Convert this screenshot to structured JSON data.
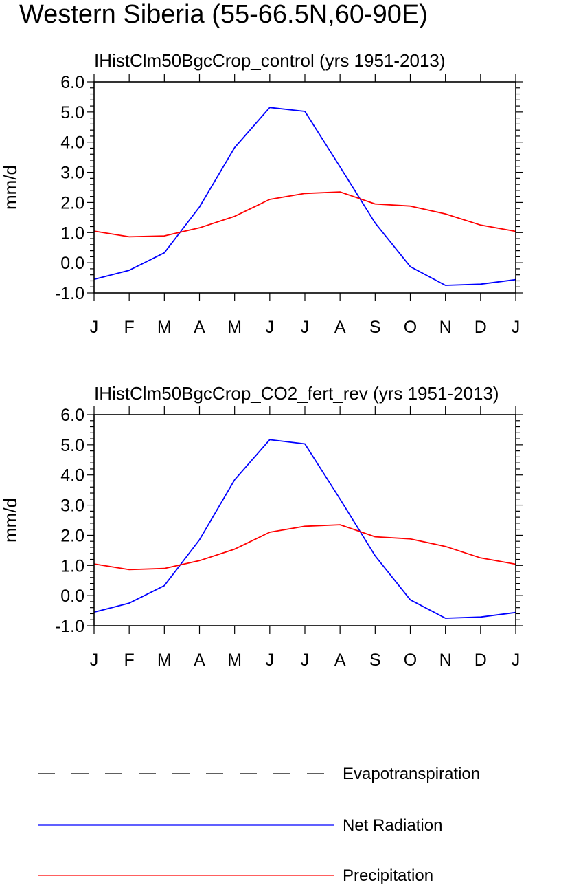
{
  "title": "Western Siberia (55-66.5N,60-90E)",
  "colors": {
    "net_radiation": "#0000ff",
    "precipitation": "#ff0000",
    "evapotranspiration": "#000000"
  },
  "chart_data": [
    {
      "type": "line",
      "title": "IHistClm50BgcCrop_control (yrs 1951-2013)",
      "ylabel": "mm/d",
      "xlabel": "",
      "categories": [
        "J",
        "F",
        "M",
        "A",
        "M",
        "J",
        "J",
        "A",
        "S",
        "O",
        "N",
        "D",
        "J"
      ],
      "ylim": [
        -1.0,
        6.0
      ],
      "yticks": [
        "6.0",
        "5.0",
        "4.0",
        "3.0",
        "2.0",
        "1.0",
        "0.0",
        "-1.0"
      ],
      "grid": false,
      "series": [
        {
          "name": "Net Radiation",
          "values": [
            -0.55,
            -0.25,
            0.33,
            1.85,
            3.82,
            5.15,
            5.02,
            3.18,
            1.32,
            -0.13,
            -0.75,
            -0.71,
            -0.56
          ]
        },
        {
          "name": "Precipitation",
          "values": [
            1.05,
            0.86,
            0.89,
            1.16,
            1.54,
            2.1,
            2.3,
            2.35,
            1.95,
            1.88,
            1.62,
            1.25,
            1.04
          ]
        }
      ]
    },
    {
      "type": "line",
      "title": "IHistClm50BgcCrop_CO2_fert_rev (yrs 1951-2013)",
      "ylabel": "mm/d",
      "xlabel": "",
      "categories": [
        "J",
        "F",
        "M",
        "A",
        "M",
        "J",
        "J",
        "A",
        "S",
        "O",
        "N",
        "D",
        "J"
      ],
      "ylim": [
        -1.0,
        6.0
      ],
      "yticks": [
        "6.0",
        "5.0",
        "4.0",
        "3.0",
        "2.0",
        "1.0",
        "0.0",
        "-1.0"
      ],
      "grid": false,
      "series": [
        {
          "name": "Net Radiation",
          "values": [
            -0.55,
            -0.25,
            0.33,
            1.85,
            3.84,
            5.17,
            5.03,
            3.2,
            1.32,
            -0.14,
            -0.75,
            -0.71,
            -0.56
          ]
        },
        {
          "name": "Precipitation",
          "values": [
            1.05,
            0.86,
            0.9,
            1.16,
            1.54,
            2.1,
            2.3,
            2.35,
            1.95,
            1.88,
            1.63,
            1.25,
            1.04
          ]
        }
      ]
    }
  ],
  "legend": {
    "position": "bottom",
    "items": [
      {
        "label": "Evapotranspiration",
        "style": "dashed",
        "color": "#000000"
      },
      {
        "label": "Net Radiation",
        "style": "solid",
        "color": "#0000ff"
      },
      {
        "label": "Precipitation",
        "style": "solid",
        "color": "#ff0000"
      }
    ]
  }
}
